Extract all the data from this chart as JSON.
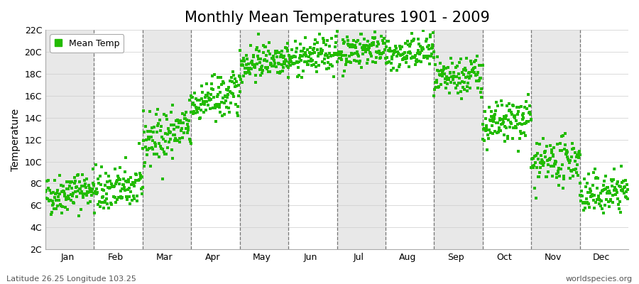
{
  "title": "Monthly Mean Temperatures 1901 - 2009",
  "ylabel": "Temperature",
  "footer_left": "Latitude 26.25 Longitude 103.25",
  "footer_right": "worldspecies.org",
  "legend_label": "Mean Temp",
  "ylim": [
    2,
    22
  ],
  "yticks": [
    2,
    4,
    6,
    8,
    10,
    12,
    14,
    16,
    18,
    20,
    22
  ],
  "ytick_labels": [
    "2C",
    "4C",
    "6C",
    "8C",
    "10C",
    "12C",
    "14C",
    "16C",
    "18C",
    "20C",
    "22C"
  ],
  "months": [
    "Jan",
    "Feb",
    "Mar",
    "Apr",
    "May",
    "Jun",
    "Jul",
    "Aug",
    "Sep",
    "Oct",
    "Nov",
    "Dec"
  ],
  "dot_color": "#22BB00",
  "background_color": "#FFFFFF",
  "stripe_color": "#E8E8E8",
  "title_fontsize": 15,
  "axis_label_fontsize": 10,
  "tick_fontsize": 9,
  "monthly_means": [
    6.8,
    7.2,
    11.8,
    15.2,
    18.8,
    19.2,
    19.8,
    19.5,
    17.2,
    13.0,
    9.5,
    6.8
  ],
  "monthly_trend": [
    0.008,
    0.006,
    0.012,
    0.01,
    0.008,
    0.007,
    0.008,
    0.006,
    0.008,
    0.01,
    0.008,
    0.006
  ],
  "monthly_std": [
    0.9,
    1.0,
    1.2,
    1.0,
    0.8,
    0.8,
    0.8,
    0.8,
    0.9,
    1.0,
    1.0,
    0.9
  ],
  "n_years": 109,
  "start_year": 1901
}
